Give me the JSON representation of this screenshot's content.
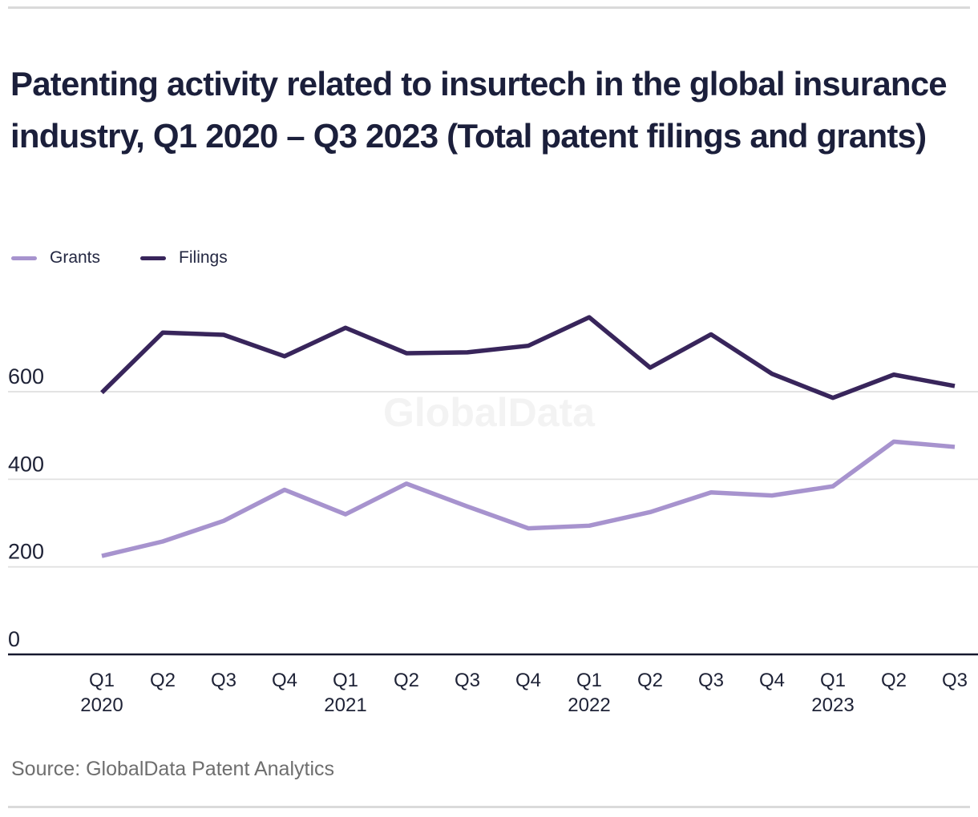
{
  "page": {
    "title": "Patenting activity related to insurtech in the global insurance industry, Q1 2020 – Q3 2023 (Total patent filings and grants)",
    "source": "Source: GlobalData Patent Analytics",
    "watermark": "GlobalData"
  },
  "legend": {
    "items": [
      {
        "label": "Grants",
        "color": "#a793ce"
      },
      {
        "label": "Filings",
        "color": "#38255b"
      }
    ]
  },
  "colors": {
    "background": "#ffffff",
    "grid": "#e1e1e1",
    "axis": "#16182e",
    "tick_text": "#1e2236",
    "title_text": "#1b1f3b",
    "legend_text": "#242842",
    "source_text": "#6e6e6e",
    "watermark": "#f3f3f3",
    "divider": "#dadada",
    "grants_line": "#a793ce",
    "filings_line": "#38255b"
  },
  "chart_data": {
    "type": "line",
    "title": "Patenting activity related to insurtech in the global insurance industry, Q1 2020 – Q3 2023 (Total patent filings and grants)",
    "categories": [
      "Q1 2020",
      "Q2 2020",
      "Q3 2020",
      "Q4 2020",
      "Q1 2021",
      "Q2 2021",
      "Q3 2021",
      "Q4 2021",
      "Q1 2022",
      "Q2 2022",
      "Q3 2022",
      "Q4 2022",
      "Q1 2023",
      "Q2 2023",
      "Q3 2023"
    ],
    "x_axis": {
      "quarter_labels": [
        "Q1",
        "Q2",
        "Q3",
        "Q4",
        "Q1",
        "Q2",
        "Q3",
        "Q4",
        "Q1",
        "Q2",
        "Q3",
        "Q4",
        "Q1",
        "Q2",
        "Q3"
      ],
      "year_labels": [
        {
          "index": 0,
          "year": "2020"
        },
        {
          "index": 4,
          "year": "2021"
        },
        {
          "index": 8,
          "year": "2022"
        },
        {
          "index": 12,
          "year": "2023"
        }
      ]
    },
    "y_axis": {
      "ticks": [
        0,
        200,
        400,
        600
      ],
      "range": [
        0,
        800
      ],
      "label": ""
    },
    "series": [
      {
        "name": "Grants",
        "color": "#a793ce",
        "values": [
          225,
          258,
          305,
          376,
          320,
          390,
          338,
          288,
          294,
          325,
          370,
          363,
          384,
          486,
          474
        ]
      },
      {
        "name": "Filings",
        "color": "#38255b",
        "values": [
          598,
          735,
          730,
          681,
          746,
          688,
          690,
          705,
          770,
          655,
          731,
          641,
          586,
          639,
          613
        ]
      }
    ],
    "grid": "horizontal",
    "legend_position": "top-left",
    "xlabel": "",
    "ylabel": ""
  }
}
